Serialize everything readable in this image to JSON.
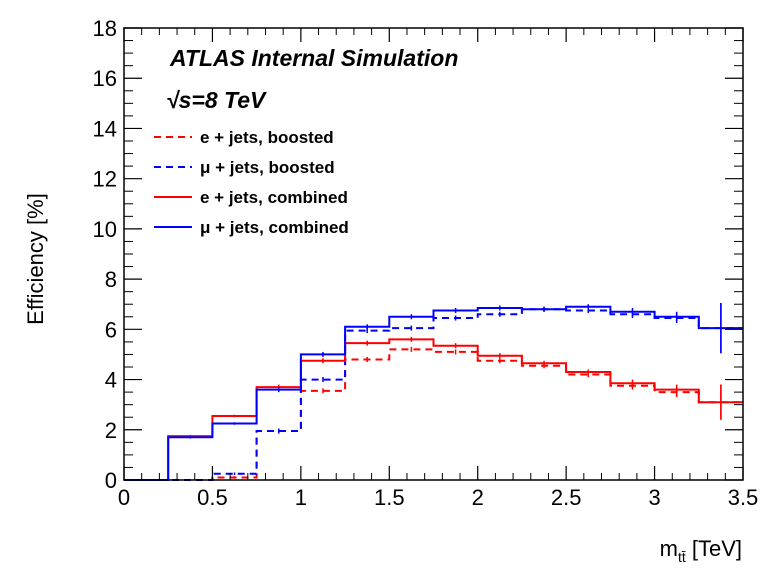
{
  "chart_data": {
    "type": "line",
    "title": "",
    "xlabel": "m_tt̄ [TeV]",
    "xlabel_main": "m",
    "xlabel_sub": "tt̄",
    "xlabel_unit": " [TeV]",
    "ylabel": "Efficiency [%]",
    "xlim": [
      0,
      3.5
    ],
    "ylim": [
      0,
      18
    ],
    "xticks": [
      0,
      0.5,
      1,
      1.5,
      2,
      2.5,
      3,
      3.5
    ],
    "xtick_labels": [
      "0",
      "0.5",
      "1",
      "1.5",
      "2",
      "2.5",
      "3",
      "3.5"
    ],
    "yticks": [
      0,
      2,
      4,
      6,
      8,
      10,
      12,
      14,
      16,
      18
    ],
    "ytick_labels": [
      "0",
      "2",
      "4",
      "6",
      "8",
      "10",
      "12",
      "14",
      "16",
      "18"
    ],
    "grid": false,
    "legend_position": "top-left",
    "annotations": {
      "atlas_line": "ATLAS Internal  Simulation",
      "energy_sqrt": "√s",
      "energy_rest": "=8 TeV"
    },
    "bin_edges": [
      0,
      0.25,
      0.5,
      0.75,
      1.0,
      1.25,
      1.5,
      1.75,
      2.0,
      2.25,
      2.5,
      2.75,
      3.0,
      3.25,
      3.5
    ],
    "series": [
      {
        "name": "e + jets, boosted",
        "color": "#ff0000",
        "style": "dashed",
        "values": [
          0,
          0,
          0.1,
          1.95,
          3.55,
          4.8,
          5.2,
          5.1,
          4.75,
          4.55,
          4.2,
          3.75,
          3.5,
          3.1
        ],
        "errors": [
          0,
          0,
          0.05,
          0.1,
          0.1,
          0.1,
          0.1,
          0.1,
          0.1,
          0.1,
          0.1,
          0.15,
          0.2,
          0.7
        ]
      },
      {
        "name": "μ + jets, boosted",
        "color": "#0000ff",
        "style": "dashed",
        "values": [
          0,
          0,
          0.25,
          1.95,
          4.0,
          5.95,
          6.05,
          6.45,
          6.6,
          6.8,
          6.75,
          6.6,
          6.45,
          6.05
        ],
        "errors": [
          0,
          0,
          0.05,
          0.1,
          0.1,
          0.1,
          0.1,
          0.1,
          0.1,
          0.1,
          0.1,
          0.15,
          0.2,
          1.0
        ]
      },
      {
        "name": "e + jets, combined",
        "color": "#ff0000",
        "style": "solid",
        "values": [
          0,
          1.75,
          2.55,
          3.7,
          4.75,
          5.45,
          5.6,
          5.35,
          4.95,
          4.65,
          4.3,
          3.85,
          3.6,
          3.1
        ],
        "errors": [
          0,
          0.05,
          0.05,
          0.1,
          0.1,
          0.1,
          0.1,
          0.1,
          0.1,
          0.1,
          0.1,
          0.15,
          0.2,
          0.7
        ]
      },
      {
        "name": "μ + jets, combined",
        "color": "#0000ff",
        "style": "solid",
        "values": [
          0,
          1.7,
          2.25,
          3.6,
          5.0,
          6.1,
          6.5,
          6.75,
          6.85,
          6.8,
          6.9,
          6.7,
          6.5,
          6.05
        ],
        "errors": [
          0,
          0.05,
          0.05,
          0.1,
          0.1,
          0.1,
          0.1,
          0.1,
          0.1,
          0.1,
          0.1,
          0.15,
          0.2,
          1.0
        ]
      }
    ]
  }
}
